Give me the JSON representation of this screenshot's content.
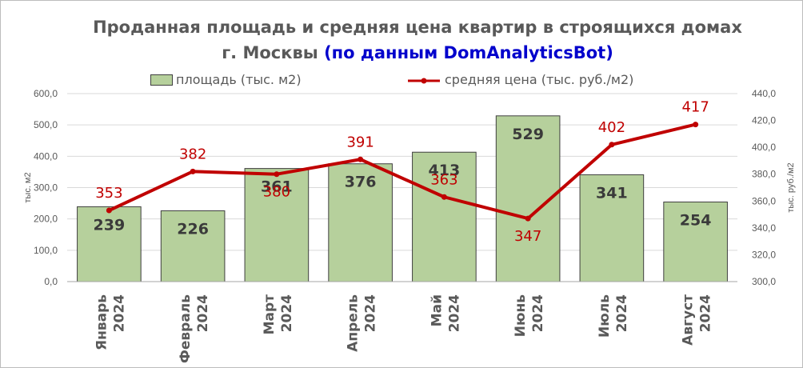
{
  "title": {
    "line1": "Проданная площадь и средняя цена квартир в строящихся домах",
    "line2_main": "г. Москвы ",
    "line2_source": "(по данным DomAnalyticsBot)"
  },
  "chart_data": {
    "type": "bar",
    "categories": [
      "Январь 2024",
      "Февраль 2024",
      "Март 2024",
      "Апрель 2024",
      "Май 2024",
      "Июнь 2024",
      "Июль 2024",
      "Август 2024"
    ],
    "series": [
      {
        "name": "площадь (тыс. м2)",
        "type": "bar",
        "axis": "left",
        "color": "#b6d09c",
        "values": [
          239,
          226,
          361,
          376,
          413,
          529,
          341,
          254
        ]
      },
      {
        "name": "средняя цена (тыс. руб./м2)",
        "type": "line",
        "axis": "right",
        "color": "#c00000",
        "values": [
          353,
          382,
          380,
          391,
          363,
          347,
          402,
          417
        ]
      }
    ],
    "y_left": {
      "label": "тыс. м2",
      "range": [
        0,
        600
      ],
      "ticks": [
        "0,0",
        "100,0",
        "200,0",
        "300,0",
        "400,0",
        "500,0",
        "600,0"
      ]
    },
    "y_right": {
      "label": "тыс. руб./м2",
      "range": [
        300,
        440
      ],
      "ticks": [
        "300,0",
        "320,0",
        "340,0",
        "360,0",
        "380,0",
        "400,0",
        "420,0",
        "440,0"
      ]
    },
    "grid": true,
    "legend": "top"
  }
}
